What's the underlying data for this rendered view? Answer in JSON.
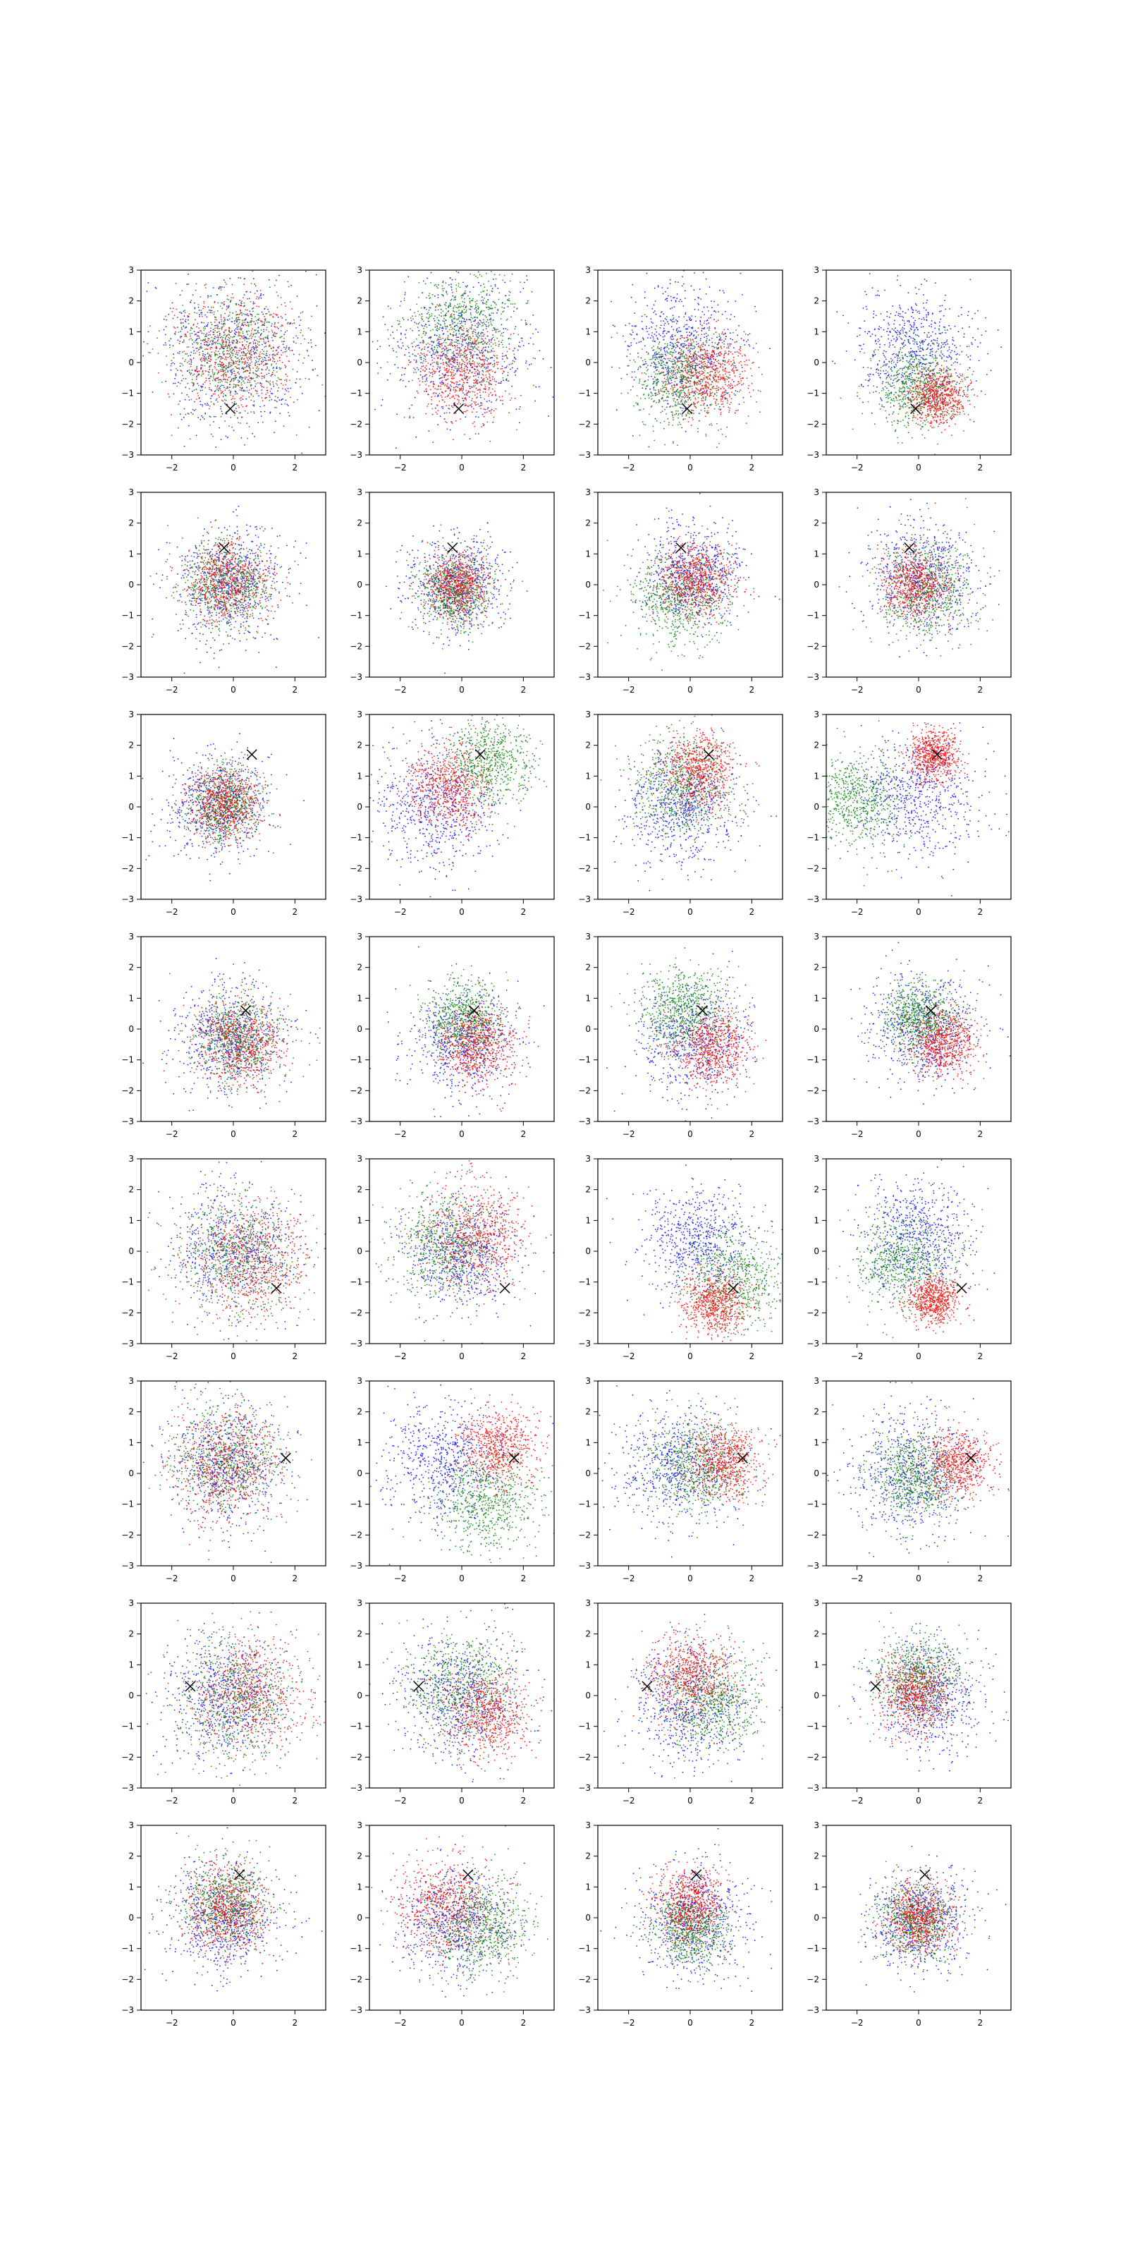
{
  "figure": {
    "rows": 8,
    "cols": 4,
    "background": "#ffffff",
    "colors": {
      "blue": "#0000ff",
      "green": "#008000",
      "red": "#ff0000",
      "marker": "#000000"
    }
  },
  "chart_data": {
    "type": "scatter",
    "grid": false,
    "legend": "none",
    "xlim": [
      -3,
      3
    ],
    "ylim": [
      -3,
      3
    ],
    "xticks": [
      -2,
      0,
      2
    ],
    "yticks": [
      -3,
      -2,
      -1,
      0,
      1,
      2,
      3
    ],
    "xtick_labels": [
      "−2",
      "0",
      "2"
    ],
    "ytick_labels": [
      "−3",
      "−2",
      "−1",
      "0",
      "1",
      "2",
      "3"
    ],
    "series_colors": [
      "#0000ff",
      "#008000",
      "#ff0000"
    ],
    "marker_symbol": "×",
    "rows": [
      {
        "marker": [
          -0.1,
          -1.5
        ],
        "panels": [
          {
            "blue": [
              0,
              0.3,
              1.2
            ],
            "green": [
              0,
              0.3,
              1.0
            ],
            "red": [
              0.1,
              0.2,
              1.0
            ]
          },
          {
            "blue": [
              0,
              0.3,
              1.1
            ],
            "green": [
              0,
              1.2,
              0.9
            ],
            "red": [
              0,
              -0.3,
              0.8
            ]
          },
          {
            "blue": [
              -0.2,
              0.5,
              1.0
            ],
            "green": [
              -0.3,
              -0.5,
              0.8
            ],
            "red": [
              0.6,
              -0.4,
              0.7
            ]
          },
          {
            "blue": [
              -0.2,
              0.4,
              1.0
            ],
            "green": [
              0,
              -0.8,
              0.7
            ],
            "red": [
              0.6,
              -1.1,
              0.45
            ]
          }
        ]
      },
      {
        "marker": [
          -0.3,
          1.2
        ],
        "panels": [
          {
            "blue": [
              -0.2,
              0,
              0.9
            ],
            "green": [
              -0.2,
              0,
              0.7
            ],
            "red": [
              -0.2,
              0.1,
              0.7
            ]
          },
          {
            "blue": [
              -0.2,
              0,
              0.8
            ],
            "green": [
              -0.2,
              -0.2,
              0.6
            ],
            "red": [
              -0.1,
              0,
              0.5
            ]
          },
          {
            "blue": [
              0.1,
              0.3,
              0.8
            ],
            "green": [
              -0.3,
              -0.4,
              0.8
            ],
            "red": [
              0.2,
              0.2,
              0.6
            ]
          },
          {
            "blue": [
              0.1,
              0.2,
              0.9
            ],
            "green": [
              0.3,
              -0.2,
              0.8
            ],
            "red": [
              -0.1,
              0,
              0.55
            ]
          }
        ]
      },
      {
        "marker": [
          0.6,
          1.7
        ],
        "panels": [
          {
            "blue": [
              -0.5,
              0.1,
              0.8
            ],
            "green": [
              -0.3,
              0.1,
              0.6
            ],
            "red": [
              -0.3,
              0.1,
              0.6
            ]
          },
          {
            "blue": [
              -0.8,
              0,
              1.0
            ],
            "green": [
              0.9,
              1.5,
              0.7
            ],
            "red": [
              -0.4,
              0.6,
              0.7
            ]
          },
          {
            "blue": [
              -0.3,
              0,
              0.9
            ],
            "green": [
              -0.2,
              0.7,
              0.8
            ],
            "red": [
              0.3,
              1.2,
              0.6
            ]
          },
          {
            "blue": [
              0,
              0.3,
              1.0
            ],
            "green": [
              -2.0,
              0.2,
              0.8
            ],
            "red": [
              0.5,
              1.7,
              0.4
            ]
          }
        ]
      },
      {
        "marker": [
          0.4,
          0.6
        ],
        "panels": [
          {
            "blue": [
              0,
              -0.3,
              0.9
            ],
            "green": [
              0.1,
              -0.3,
              0.7
            ],
            "red": [
              0.3,
              -0.4,
              0.7
            ]
          },
          {
            "blue": [
              0,
              -0.4,
              0.9
            ],
            "green": [
              0.1,
              0.3,
              0.6
            ],
            "red": [
              0.5,
              -0.6,
              0.6
            ]
          },
          {
            "blue": [
              0.1,
              -0.3,
              0.9
            ],
            "green": [
              -0.2,
              0.6,
              0.7
            ],
            "red": [
              0.7,
              -0.6,
              0.6
            ]
          },
          {
            "blue": [
              0.2,
              0,
              0.9
            ],
            "green": [
              0,
              0.4,
              0.6
            ],
            "red": [
              0.8,
              -0.4,
              0.55
            ]
          }
        ]
      },
      {
        "marker": [
          1.4,
          -1.2
        ],
        "panels": [
          {
            "blue": [
              0,
              0,
              1.0
            ],
            "green": [
              0.2,
              -0.1,
              1.0
            ],
            "red": [
              0.6,
              -0.3,
              0.9
            ]
          },
          {
            "blue": [
              0,
              -0.1,
              0.9
            ],
            "green": [
              -0.6,
              0.3,
              0.9
            ],
            "red": [
              0.5,
              0.5,
              0.8
            ]
          },
          {
            "blue": [
              0.2,
              0.4,
              0.9
            ],
            "green": [
              1.4,
              -0.9,
              0.8
            ],
            "red": [
              0.8,
              -1.7,
              0.5
            ]
          },
          {
            "blue": [
              0,
              0.5,
              0.9
            ],
            "green": [
              -0.5,
              -0.3,
              0.8
            ],
            "red": [
              0.5,
              -1.6,
              0.4
            ]
          }
        ]
      },
      {
        "marker": [
          1.7,
          0.5
        ],
        "panels": [
          {
            "blue": [
              -0.3,
              0.3,
              1.0
            ],
            "green": [
              -0.2,
              0.4,
              0.9
            ],
            "red": [
              -0.2,
              0.3,
              0.9
            ]
          },
          {
            "blue": [
              -0.6,
              0.3,
              1.0
            ],
            "green": [
              0.9,
              -0.9,
              0.8
            ],
            "red": [
              1.2,
              0.9,
              0.6
            ]
          },
          {
            "blue": [
              -0.4,
              0.2,
              1.0
            ],
            "green": [
              0.2,
              0.3,
              0.8
            ],
            "red": [
              1.1,
              0.4,
              0.6
            ]
          },
          {
            "blue": [
              -0.3,
              0,
              1.0
            ],
            "green": [
              -0.2,
              -0.1,
              0.7
            ],
            "red": [
              1.3,
              0.3,
              0.55
            ]
          }
        ]
      },
      {
        "marker": [
          -1.4,
          0.3
        ],
        "panels": [
          {
            "blue": [
              -0.2,
              0,
              1.0
            ],
            "green": [
              0.2,
              -0.1,
              1.0
            ],
            "red": [
              0.5,
              0,
              0.9
            ]
          },
          {
            "blue": [
              0,
              0,
              1.0
            ],
            "green": [
              0,
              0.2,
              0.9
            ],
            "red": [
              0.8,
              -0.6,
              0.7
            ]
          },
          {
            "blue": [
              0,
              -0.2,
              1.0
            ],
            "green": [
              0.7,
              -0.3,
              0.8
            ],
            "red": [
              0,
              0.6,
              0.7
            ]
          },
          {
            "blue": [
              0.3,
              -0.1,
              0.9
            ],
            "green": [
              0,
              0.6,
              0.7
            ],
            "red": [
              -0.1,
              0,
              0.6
            ]
          }
        ]
      },
      {
        "marker": [
          0.2,
          1.4
        ],
        "panels": [
          {
            "blue": [
              -0.3,
              0,
              0.9
            ],
            "green": [
              -0.2,
              0.5,
              0.7
            ],
            "red": [
              -0.2,
              0.2,
              0.7
            ]
          },
          {
            "blue": [
              -0.2,
              -0.2,
              0.9
            ],
            "green": [
              0.6,
              -0.3,
              0.8
            ],
            "red": [
              -0.5,
              0.4,
              0.8
            ]
          },
          {
            "blue": [
              0.1,
              -0.1,
              0.9
            ],
            "green": [
              0,
              -0.3,
              0.6
            ],
            "red": [
              0,
              0.5,
              0.6
            ]
          },
          {
            "blue": [
              0,
              -0.1,
              0.8
            ],
            "green": [
              -0.1,
              -0.1,
              0.6
            ],
            "red": [
              0,
              0,
              0.55
            ]
          }
        ]
      }
    ]
  }
}
